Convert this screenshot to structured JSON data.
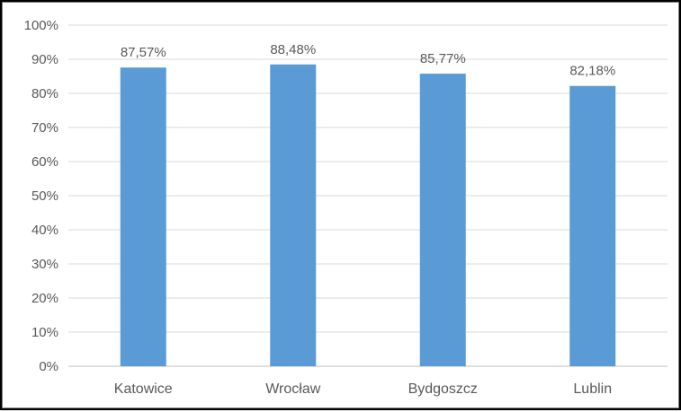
{
  "chart_data": {
    "type": "bar",
    "categories": [
      "Katowice",
      "Wrocław",
      "Bydgoszcz",
      "Lublin"
    ],
    "values": [
      87.57,
      88.48,
      85.77,
      82.18
    ],
    "value_labels": [
      "87,57%",
      "88,48%",
      "85,77%",
      "82,18%"
    ],
    "y_ticks": [
      "0%",
      "10%",
      "20%",
      "30%",
      "40%",
      "50%",
      "60%",
      "70%",
      "80%",
      "90%",
      "100%"
    ],
    "ylim": [
      0,
      100
    ],
    "grid": true,
    "legend": "none",
    "title": "",
    "xlabel": "",
    "ylabel": "",
    "colors": {
      "bar": "#5b9bd5",
      "grid": "#d9d9d9",
      "axis": "#bfbfbf",
      "text": "#595959"
    }
  }
}
